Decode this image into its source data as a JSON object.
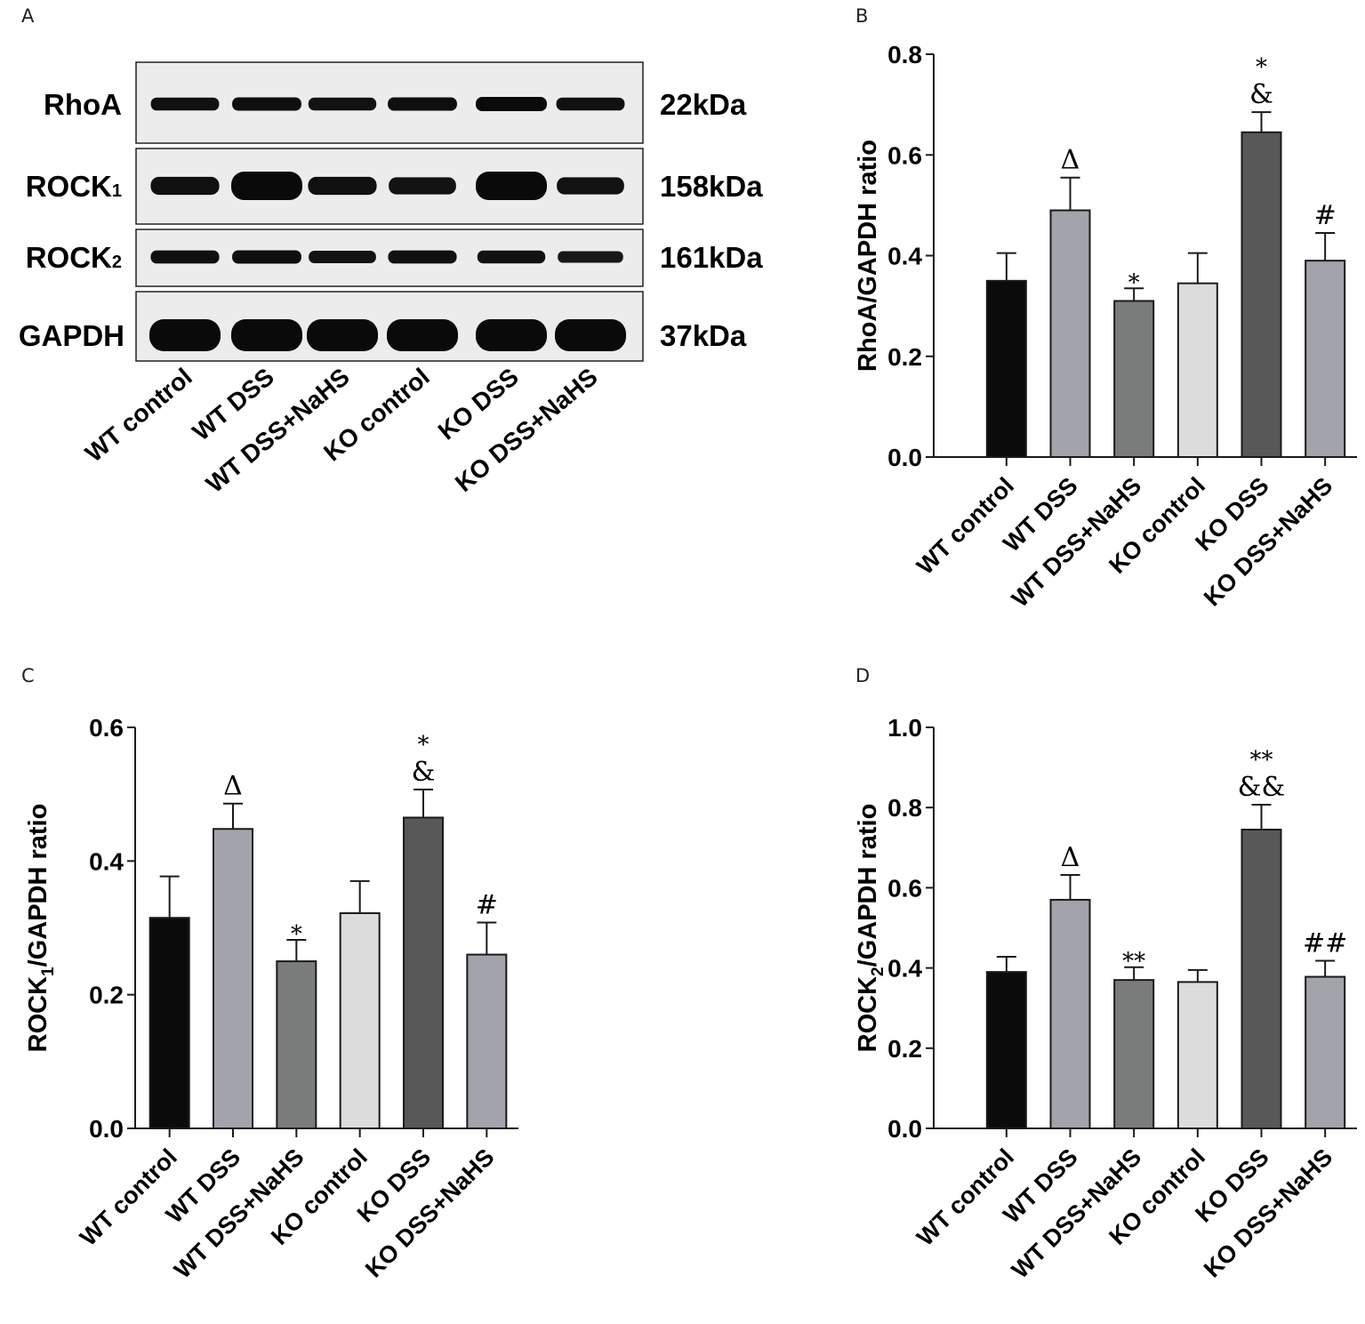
{
  "panels": {
    "a": "A",
    "b": "B",
    "c": "C",
    "d": "D"
  },
  "western_blot": {
    "rows": [
      {
        "label": "RhoA",
        "weight": "22kDa",
        "intensities": [
          0.78,
          0.85,
          0.75,
          0.85,
          1.0,
          0.78
        ]
      },
      {
        "label": "ROCK",
        "label_sub": "1",
        "weight": "158kDa",
        "intensities": [
          0.8,
          1.0,
          0.8,
          0.7,
          1.0,
          0.7
        ]
      },
      {
        "label": "ROCK",
        "label_sub": "2",
        "weight": "161kDa",
        "intensities": [
          0.8,
          0.85,
          0.7,
          0.8,
          0.75,
          0.55
        ]
      },
      {
        "label": "GAPDH",
        "weight": "37kDa",
        "intensities": [
          1.0,
          1.0,
          1.0,
          1.0,
          1.0,
          1.0
        ]
      }
    ],
    "lanes": [
      "WT control",
      "WT DSS",
      "WT DSS+NaHS",
      "KO control",
      "KO DSS",
      "KO DSS+NaHS"
    ]
  },
  "colors": {
    "bars": [
      "#0b0b0b",
      "#a3a3ab",
      "#7a7c7c",
      "#dcdcdc",
      "#585858",
      "#a3a3ab"
    ]
  },
  "chart_data": [
    {
      "id": "b",
      "type": "bar",
      "categories": [
        "WT control",
        "WT DSS",
        "WT DSS+NaHS",
        "KO control",
        "KO DSS",
        "KO DSS+NaHS"
      ],
      "values": [
        0.35,
        0.49,
        0.31,
        0.345,
        0.645,
        0.39
      ],
      "errors": [
        0.055,
        0.065,
        0.025,
        0.06,
        0.04,
        0.055
      ],
      "annotations": [
        [],
        [
          "Δ"
        ],
        [
          "*"
        ],
        [],
        [
          "*",
          "&"
        ],
        [
          "#"
        ]
      ],
      "ylabel": "RhoA/GAPDH ratio",
      "ylim": [
        0,
        0.8
      ],
      "yticks": [
        "0.0",
        "0.2",
        "0.4",
        "0.6",
        "0.8"
      ]
    },
    {
      "id": "c",
      "type": "bar",
      "categories": [
        "WT control",
        "WT DSS",
        "WT DSS+NaHS",
        "KO control",
        "KO DSS",
        "KO DSS+NaHS"
      ],
      "values": [
        0.315,
        0.448,
        0.25,
        0.322,
        0.465,
        0.26
      ],
      "errors": [
        0.062,
        0.038,
        0.032,
        0.048,
        0.042,
        0.048
      ],
      "annotations": [
        [],
        [
          "Δ"
        ],
        [
          "*"
        ],
        [],
        [
          "*",
          "&"
        ],
        [
          "#"
        ]
      ],
      "ylabel": "ROCK",
      "ylabel_sub": "1",
      "ylabel_tail": "/GAPDH ratio",
      "ylim": [
        0,
        0.6
      ],
      "yticks": [
        "0.0",
        "0.2",
        "0.4",
        "0.6"
      ]
    },
    {
      "id": "d",
      "type": "bar",
      "categories": [
        "WT control",
        "WT DSS",
        "WT DSS+NaHS",
        "KO control",
        "KO DSS",
        "KO DSS+NaHS"
      ],
      "values": [
        0.39,
        0.57,
        0.37,
        0.365,
        0.745,
        0.378
      ],
      "errors": [
        0.038,
        0.062,
        0.032,
        0.03,
        0.062,
        0.04
      ],
      "annotations": [
        [],
        [
          "Δ"
        ],
        [
          "**"
        ],
        [],
        [
          "**",
          "&&"
        ],
        [
          "##"
        ]
      ],
      "ylabel": "ROCK",
      "ylabel_sub": "2",
      "ylabel_tail": "/GAPDH ratio",
      "ylim": [
        0,
        1.0
      ],
      "yticks": [
        "0.0",
        "0.2",
        "0.4",
        "0.6",
        "0.8",
        "1.0"
      ]
    }
  ]
}
